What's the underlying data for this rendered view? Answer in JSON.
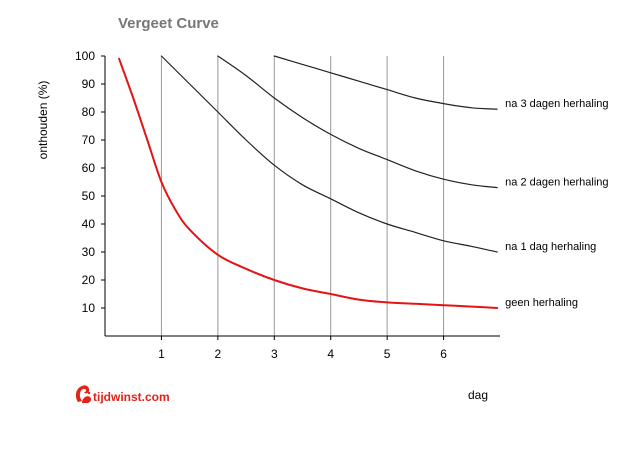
{
  "colors": {
    "background": "#ffffff",
    "axis": "#000000",
    "grid": "#999999",
    "title": "#777777",
    "series_default": "#222222",
    "series_highlight": "#e41414",
    "logo": "#e2231a"
  },
  "chart_data": {
    "type": "line",
    "title": "Vergeet Curve",
    "xlabel": "dag",
    "ylabel": "onthouden (%)",
    "xlim": [
      0,
      7
    ],
    "ylim": [
      0,
      100
    ],
    "x_ticks": [
      1,
      2,
      3,
      4,
      5,
      6
    ],
    "y_ticks": [
      10,
      20,
      30,
      40,
      50,
      60,
      70,
      80,
      90,
      100
    ],
    "grid": "vertical lines at each day",
    "series": [
      {
        "name": "geen herhaling",
        "color": "#e41414",
        "x": [
          0.25,
          0.5,
          0.75,
          1,
          1.25,
          1.5,
          2,
          2.5,
          3,
          3.5,
          4,
          4.5,
          5,
          5.5,
          6,
          6.5,
          6.95
        ],
        "y": [
          99,
          85,
          70,
          55,
          45,
          38,
          29,
          24,
          20,
          17,
          15,
          13,
          12,
          11.5,
          11,
          10.5,
          10
        ]
      },
      {
        "name": "na 1 dag herhaling",
        "color": "#222222",
        "x": [
          1,
          1.5,
          2,
          2.5,
          3,
          3.5,
          4,
          4.5,
          5,
          5.5,
          6,
          6.5,
          6.95
        ],
        "y": [
          100,
          90,
          80,
          70,
          61,
          54,
          49,
          44,
          40,
          37,
          34,
          32,
          30
        ]
      },
      {
        "name": "na 2 dagen herhaling",
        "color": "#222222",
        "x": [
          2,
          2.5,
          3,
          3.5,
          4,
          4.5,
          5,
          5.5,
          6,
          6.5,
          6.95
        ],
        "y": [
          100,
          93,
          85,
          78,
          72,
          67,
          63,
          59,
          56,
          54,
          53
        ]
      },
      {
        "name": "na 3 dagen herhaling",
        "color": "#222222",
        "x": [
          3,
          3.5,
          4,
          4.5,
          5,
          5.5,
          6,
          6.5,
          6.95
        ],
        "y": [
          100,
          97,
          94,
          91,
          88,
          85,
          83,
          81.5,
          81
        ]
      }
    ]
  },
  "logo": {
    "text": "tijdwinst.com",
    "icon": "squirrel-icon"
  }
}
